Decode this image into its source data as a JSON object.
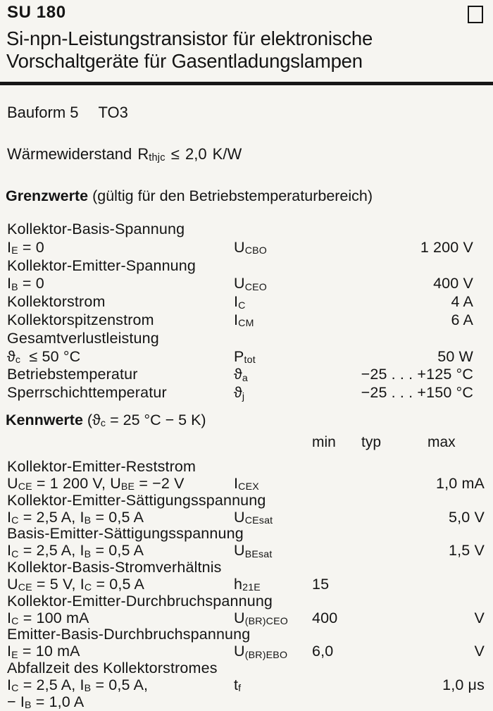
{
  "page": {
    "part_number": "SU 180",
    "subtitle_line1": "Si-npn-Leistungstransistor für elektronische",
    "subtitle_line2": "Vorschaltgeräte für Gasentladungslampen"
  },
  "package": {
    "bauform": "Bauform 5",
    "case": "TO3"
  },
  "thermal": {
    "segments": [
      {
        "t": "Wärmewiderstand R"
      },
      {
        "s": "thjc"
      },
      {
        "t": " ≤ 2,0 K/W"
      }
    ]
  },
  "grenzwerte": {
    "heading_bold": "Grenzwerte",
    "heading_rest": " (gültig für den Betriebstemperaturbereich)",
    "rows": [
      {
        "label": [
          {
            "t": "Kollektor-Basis-Spannung"
          }
        ]
      },
      {
        "label": [
          {
            "t": "I"
          },
          {
            "s": "E"
          },
          {
            "t": " = 0"
          }
        ],
        "symbol": [
          {
            "t": "U"
          },
          {
            "s": "CBO"
          }
        ],
        "value": "1 200 V"
      },
      {
        "label": [
          {
            "t": "Kollektor-Emitter-Spannung"
          }
        ]
      },
      {
        "label": [
          {
            "t": "I"
          },
          {
            "s": "B"
          },
          {
            "t": " = 0"
          }
        ],
        "symbol": [
          {
            "t": "U"
          },
          {
            "s": "CEO"
          }
        ],
        "value": "400 V"
      },
      {
        "label": [
          {
            "t": "Kollektorstrom"
          }
        ],
        "symbol": [
          {
            "t": "I"
          },
          {
            "s": "C"
          }
        ],
        "value": "4 A"
      },
      {
        "label": [
          {
            "t": "Kollektorspitzenstrom"
          }
        ],
        "symbol": [
          {
            "t": "I"
          },
          {
            "s": "CM"
          }
        ],
        "value": "6 A"
      },
      {
        "label": [
          {
            "t": "Gesamtverlustleistung"
          }
        ]
      },
      {
        "label": [
          {
            "t": "ϑ"
          },
          {
            "s": "c"
          },
          {
            "t": "  ≤ 50 °C"
          }
        ],
        "symbol": [
          {
            "t": "P"
          },
          {
            "s": "tot"
          }
        ],
        "value": "50 W"
      },
      {
        "label": [
          {
            "t": "Betriebstemperatur"
          }
        ],
        "symbol": [
          {
            "t": "ϑ"
          },
          {
            "s": "a"
          }
        ],
        "value": "−25 . . . +125 °C"
      },
      {
        "label": [
          {
            "t": "Sperrschichttemperatur"
          }
        ],
        "symbol": [
          {
            "t": "ϑ"
          },
          {
            "s": "j"
          }
        ],
        "value": "−25 . . . +150 °C"
      }
    ]
  },
  "kennwerte": {
    "heading_bold": "Kennwerte",
    "heading_rest_segments": [
      {
        "t": " (ϑ"
      },
      {
        "s": "c"
      },
      {
        "t": " = 25 °C − 5 K)"
      }
    ],
    "columns": {
      "min": "min",
      "typ": "typ",
      "max": "max"
    },
    "rows": [
      {
        "label": [
          {
            "t": "Kollektor-Emitter-Reststrom"
          }
        ]
      },
      {
        "label": [
          {
            "t": "U"
          },
          {
            "s": "CE"
          },
          {
            "t": " = 1 200 V, U"
          },
          {
            "s": "BE"
          },
          {
            "t": " = −2 V"
          }
        ],
        "symbol": [
          {
            "t": "I"
          },
          {
            "s": "CEX"
          }
        ],
        "max": "1,0 mA"
      },
      {
        "label": [
          {
            "t": "Kollektor-Emitter-Sättigungsspannung"
          }
        ]
      },
      {
        "label": [
          {
            "t": "I"
          },
          {
            "s": "C"
          },
          {
            "t": " = 2,5 A, I"
          },
          {
            "s": "B"
          },
          {
            "t": " = 0,5 A"
          }
        ],
        "symbol": [
          {
            "t": "U"
          },
          {
            "s": "CEsat"
          }
        ],
        "max": "5,0 V"
      },
      {
        "label": [
          {
            "t": "Basis-Emitter-Sättigungsspannung"
          }
        ]
      },
      {
        "label": [
          {
            "t": "I"
          },
          {
            "s": "C"
          },
          {
            "t": " = 2,5 A, I"
          },
          {
            "s": "B"
          },
          {
            "t": " = 0,5 A"
          }
        ],
        "symbol": [
          {
            "t": "U"
          },
          {
            "s": "BEsat"
          }
        ],
        "max": "1,5 V"
      },
      {
        "label": [
          {
            "t": "Kollektor-Basis-Stromverhältnis"
          }
        ]
      },
      {
        "label": [
          {
            "t": "U"
          },
          {
            "s": "CE"
          },
          {
            "t": " = 5 V, I"
          },
          {
            "s": "C"
          },
          {
            "t": " = 0,5 A"
          }
        ],
        "symbol": [
          {
            "t": "h"
          },
          {
            "s": "21E"
          }
        ],
        "min": "15"
      },
      {
        "label": [
          {
            "t": "Kollektor-Emitter-Durchbruchspannung"
          }
        ]
      },
      {
        "label": [
          {
            "t": "I"
          },
          {
            "s": "C"
          },
          {
            "t": " = 100 mA"
          }
        ],
        "symbol": [
          {
            "t": "U"
          },
          {
            "s": "(BR)CEO"
          }
        ],
        "min": "400",
        "max": "V"
      },
      {
        "label": [
          {
            "t": "Emitter-Basis-Durchbruchspannung"
          }
        ]
      },
      {
        "label": [
          {
            "t": "I"
          },
          {
            "s": "E"
          },
          {
            "t": " = 10 mA"
          }
        ],
        "symbol": [
          {
            "t": "U"
          },
          {
            "s": "(BR)EBO"
          }
        ],
        "min": "6,0",
        "max": "V"
      },
      {
        "label": [
          {
            "t": "Abfallzeit des Kollektorstromes"
          }
        ]
      },
      {
        "label": [
          {
            "t": "I"
          },
          {
            "s": "C"
          },
          {
            "t": " = 2,5 A, I"
          },
          {
            "s": "B"
          },
          {
            "t": " = 0,5 A,"
          }
        ],
        "symbol": [
          {
            "t": "t"
          },
          {
            "s": "f"
          }
        ],
        "max": "1,0 μs"
      },
      {
        "label": [
          {
            "t": "− I"
          },
          {
            "s": "B"
          },
          {
            "t": " = 1,0 A"
          }
        ]
      }
    ]
  },
  "colors": {
    "ink": "#141414",
    "paper": "#f6f5f1"
  }
}
